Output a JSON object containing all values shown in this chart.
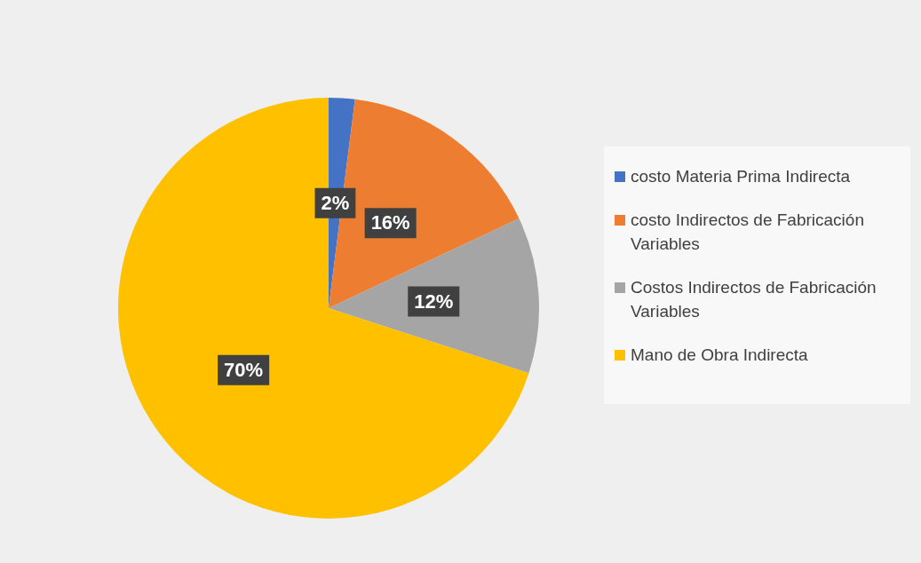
{
  "chart_data": {
    "type": "pie",
    "categories": [
      "costo Materia Prima Indirecta",
      "costo Indirectos de Fabricación Variables",
      "Costos Indirectos de Fabricación Variables",
      "Mano de Obra Indirecta"
    ],
    "values": [
      2,
      16,
      12,
      70
    ],
    "colors": [
      "#4472c4",
      "#ed7d31",
      "#a5a5a5",
      "#ffc000"
    ],
    "value_labels": [
      "2%",
      "16%",
      "12%",
      "70%"
    ],
    "legend": "right"
  }
}
